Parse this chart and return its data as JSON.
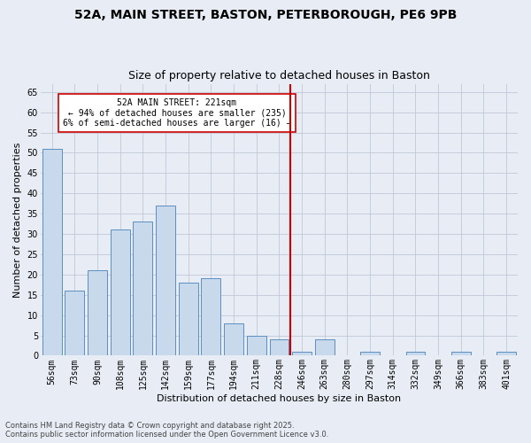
{
  "title1": "52A, MAIN STREET, BASTON, PETERBOROUGH, PE6 9PB",
  "title2": "Size of property relative to detached houses in Baston",
  "xlabel": "Distribution of detached houses by size in Baston",
  "ylabel": "Number of detached properties",
  "categories": [
    "56sqm",
    "73sqm",
    "90sqm",
    "108sqm",
    "125sqm",
    "142sqm",
    "159sqm",
    "177sqm",
    "194sqm",
    "211sqm",
    "228sqm",
    "246sqm",
    "263sqm",
    "280sqm",
    "297sqm",
    "314sqm",
    "332sqm",
    "349sqm",
    "366sqm",
    "383sqm",
    "401sqm"
  ],
  "values": [
    51,
    16,
    21,
    31,
    33,
    37,
    18,
    19,
    8,
    5,
    4,
    1,
    4,
    0,
    1,
    0,
    1,
    0,
    1,
    0,
    1
  ],
  "bar_color": "#c9d9ec",
  "bar_edge_color": "#5a8fc2",
  "vline_x": 10.5,
  "vline_color": "#cc0000",
  "annotation_text": "52A MAIN STREET: 221sqm\n← 94% of detached houses are smaller (235)\n6% of semi-detached houses are larger (16) →",
  "annotation_box_color": "#ffffff",
  "annotation_box_edge_color": "#cc0000",
  "ylim": [
    0,
    67
  ],
  "yticks": [
    0,
    5,
    10,
    15,
    20,
    25,
    30,
    35,
    40,
    45,
    50,
    55,
    60,
    65
  ],
  "grid_color": "#c0c8d8",
  "bg_color": "#e8edf5",
  "footnote": "Contains HM Land Registry data © Crown copyright and database right 2025.\nContains public sector information licensed under the Open Government Licence v3.0.",
  "title_fontsize": 10,
  "subtitle_fontsize": 9,
  "xlabel_fontsize": 8,
  "ylabel_fontsize": 8,
  "ann_fontsize": 7,
  "tick_fontsize": 7
}
